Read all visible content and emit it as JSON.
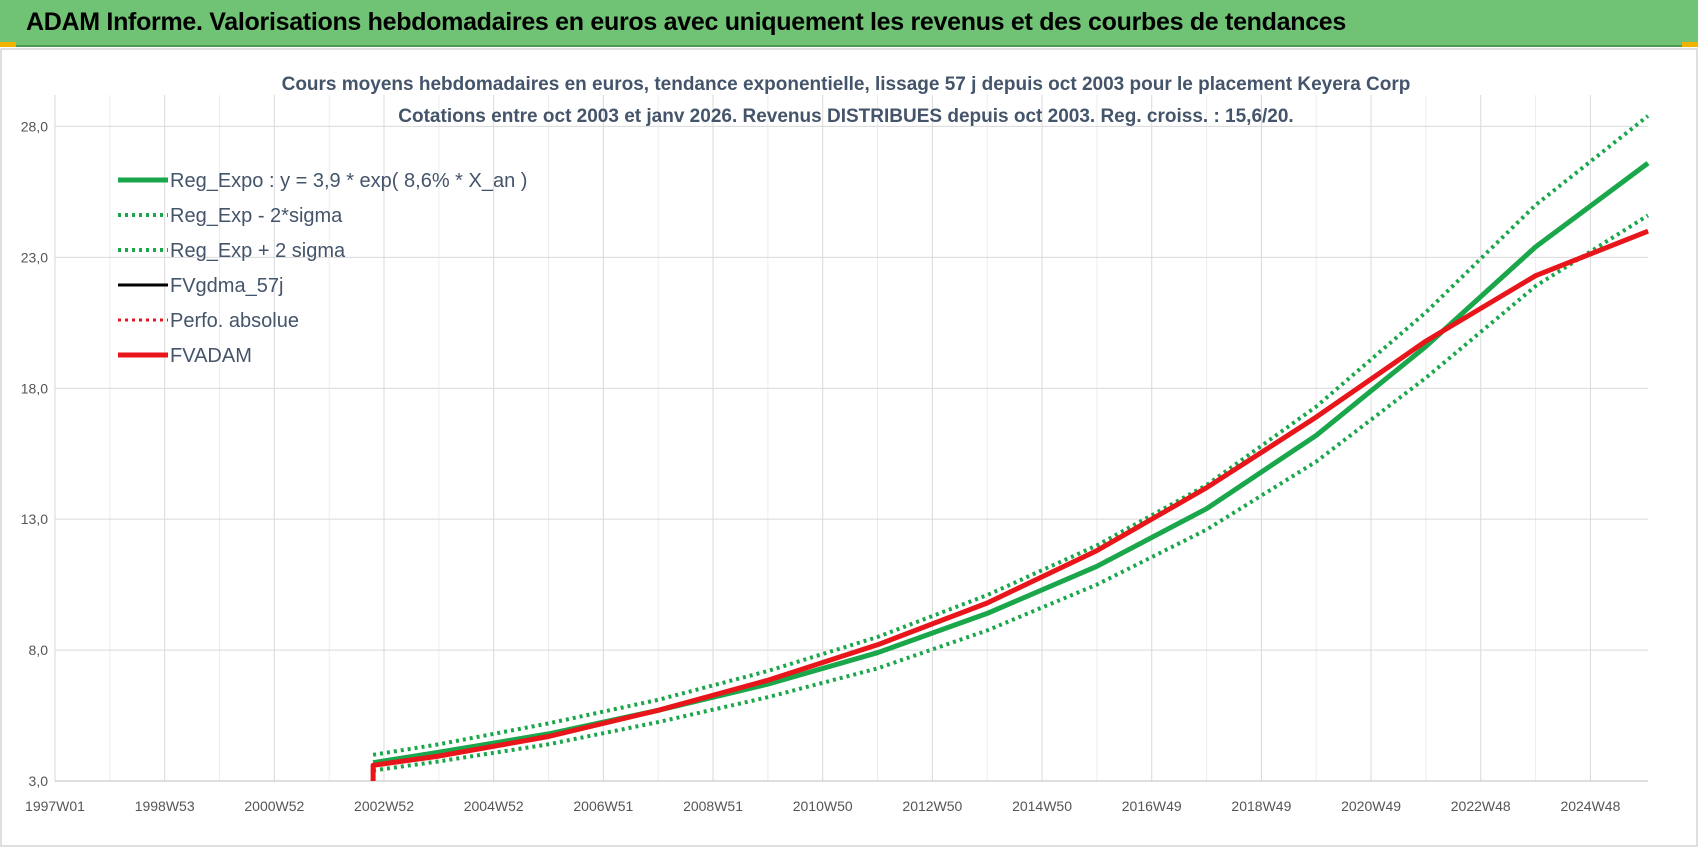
{
  "banner": {
    "title": "ADAM Informe. Valorisations hebdomadaires en euros avec uniquement les revenus et des courbes de tendances"
  },
  "colors": {
    "banner_bg": "#70c274",
    "green": "#1aa64a",
    "red": "#e8161b",
    "black": "#000000",
    "grid": "#d9d9d9",
    "title_text": "#44546a"
  },
  "chart_data": {
    "type": "line",
    "title": [
      "Cours moyens hebdomadaires en euros, tendance exponentielle, lissage 57 j depuis oct 2003 pour le placement Keyera Corp",
      "Cotations entre oct 2003 et janv 2026. Revenus DISTRIBUES depuis oct 2003. Reg. croiss. : 15,6/20."
    ],
    "xlabel": "",
    "ylabel": "",
    "x_ticks": [
      "1997W01",
      "1998W53",
      "2000W52",
      "2002W52",
      "2004W52",
      "2006W51",
      "2008W51",
      "2010W50",
      "2012W50",
      "2014W50",
      "2016W49",
      "2018W49",
      "2020W49",
      "2022W48",
      "2024W48"
    ],
    "x_range": [
      1997.0,
      2026.05
    ],
    "y_ticks": [
      "3,0",
      "8,0",
      "13,0",
      "18,0",
      "23,0",
      "28,0"
    ],
    "y_range": [
      3.0,
      29.2
    ],
    "grid": true,
    "legend_position": "top-left",
    "legend": [
      {
        "label": "Reg_Expo : y = 3,9 * exp( 8,6% *  X_an )",
        "color": "#1aa64a",
        "style": "solid",
        "width": 5
      },
      {
        "label": "Reg_Exp - 2*sigma",
        "color": "#1aa64a",
        "style": "dotted",
        "width": 4
      },
      {
        "label": "Reg_Exp + 2 sigma",
        "color": "#1aa64a",
        "style": "dotted",
        "width": 4
      },
      {
        "label": "FVgdma_57j",
        "color": "#000000",
        "style": "solid",
        "width": 3
      },
      {
        "label": "Perfo. absolue",
        "color": "#e8161b",
        "style": "dotted",
        "width": 3
      },
      {
        "label": "FVADAM",
        "color": "#e8161b",
        "style": "solid",
        "width": 5
      }
    ],
    "series": [
      {
        "name": "Reg_Expo : y = 3,9 * exp( 8,6% *  X_an )",
        "color": "#1aa64a",
        "style": "solid",
        "width": 5,
        "points": [
          [
            2002.8,
            3.7
          ],
          [
            2004,
            4.1
          ],
          [
            2006,
            4.8
          ],
          [
            2008,
            5.7
          ],
          [
            2010,
            6.7
          ],
          [
            2012,
            7.9
          ],
          [
            2014,
            9.4
          ],
          [
            2016,
            11.2
          ],
          [
            2018,
            13.4
          ],
          [
            2020,
            16.2
          ],
          [
            2022,
            19.6
          ],
          [
            2024,
            23.4
          ],
          [
            2026.05,
            26.6
          ]
        ]
      },
      {
        "name": "Reg_Exp - 2*sigma",
        "color": "#1aa64a",
        "style": "dotted",
        "width": 4,
        "points": [
          [
            2002.8,
            3.4
          ],
          [
            2004,
            3.75
          ],
          [
            2006,
            4.4
          ],
          [
            2008,
            5.25
          ],
          [
            2010,
            6.2
          ],
          [
            2012,
            7.3
          ],
          [
            2014,
            8.75
          ],
          [
            2016,
            10.5
          ],
          [
            2018,
            12.6
          ],
          [
            2020,
            15.2
          ],
          [
            2022,
            18.4
          ],
          [
            2024,
            21.9
          ],
          [
            2026.05,
            24.6
          ]
        ]
      },
      {
        "name": "Reg_Exp + 2 sigma",
        "color": "#1aa64a",
        "style": "dotted",
        "width": 4,
        "points": [
          [
            2002.8,
            4.0
          ],
          [
            2004,
            4.4
          ],
          [
            2006,
            5.2
          ],
          [
            2008,
            6.1
          ],
          [
            2010,
            7.2
          ],
          [
            2012,
            8.5
          ],
          [
            2014,
            10.1
          ],
          [
            2016,
            12.0
          ],
          [
            2018,
            14.3
          ],
          [
            2020,
            17.3
          ],
          [
            2022,
            20.9
          ],
          [
            2024,
            25.0
          ],
          [
            2026.05,
            28.4
          ]
        ]
      },
      {
        "name": "FVgdma_57j",
        "color": "#000000",
        "style": "solid",
        "width": 3,
        "points": [
          [
            2002.8,
            3.0
          ],
          [
            2002.8,
            3.6
          ],
          [
            2004,
            3.95
          ],
          [
            2006,
            4.7
          ],
          [
            2008,
            5.7
          ],
          [
            2010,
            6.85
          ],
          [
            2012,
            8.2
          ],
          [
            2014,
            9.8
          ],
          [
            2016,
            11.8
          ],
          [
            2018,
            14.2
          ],
          [
            2020,
            16.9
          ],
          [
            2022,
            19.8
          ],
          [
            2024,
            22.3
          ],
          [
            2026.05,
            24.0
          ]
        ]
      },
      {
        "name": "Perfo. absolue",
        "color": "#e8161b",
        "style": "dotted",
        "width": 3,
        "points": [
          [
            2002.8,
            3.0
          ],
          [
            2002.8,
            3.6
          ],
          [
            2004,
            3.95
          ],
          [
            2006,
            4.7
          ],
          [
            2008,
            5.7
          ],
          [
            2010,
            6.85
          ],
          [
            2012,
            8.2
          ],
          [
            2014,
            9.8
          ],
          [
            2016,
            11.8
          ],
          [
            2018,
            14.2
          ],
          [
            2020,
            16.9
          ],
          [
            2022,
            19.8
          ],
          [
            2024,
            22.3
          ],
          [
            2026.05,
            24.0
          ]
        ]
      },
      {
        "name": "FVADAM",
        "color": "#e8161b",
        "style": "solid",
        "width": 5,
        "points": [
          [
            2002.8,
            3.0
          ],
          [
            2002.8,
            3.6
          ],
          [
            2004,
            3.95
          ],
          [
            2006,
            4.7
          ],
          [
            2008,
            5.7
          ],
          [
            2010,
            6.85
          ],
          [
            2012,
            8.2
          ],
          [
            2014,
            9.8
          ],
          [
            2016,
            11.8
          ],
          [
            2018,
            14.2
          ],
          [
            2020,
            16.9
          ],
          [
            2022,
            19.8
          ],
          [
            2024,
            22.3
          ],
          [
            2026.05,
            24.0
          ]
        ]
      }
    ]
  }
}
